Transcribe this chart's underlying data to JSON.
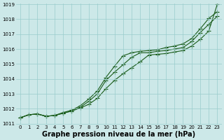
{
  "x": [
    0,
    1,
    2,
    3,
    4,
    5,
    6,
    7,
    8,
    9,
    10,
    11,
    12,
    13,
    14,
    15,
    16,
    17,
    18,
    19,
    20,
    21,
    22,
    23
  ],
  "line1": [
    1011.4,
    1011.6,
    1011.65,
    1011.5,
    1011.55,
    1011.7,
    1011.85,
    1012.05,
    1012.3,
    1012.7,
    1013.35,
    1013.9,
    1014.35,
    1014.75,
    1015.15,
    1015.6,
    1015.65,
    1015.7,
    1015.8,
    1015.9,
    1016.2,
    1016.65,
    1017.2,
    1019.0
  ],
  "line2": [
    1011.4,
    1011.6,
    1011.65,
    1011.5,
    1011.55,
    1011.7,
    1011.85,
    1012.1,
    1012.5,
    1013.0,
    1013.9,
    1014.45,
    1014.95,
    1015.45,
    1015.75,
    1015.75,
    1015.85,
    1015.9,
    1016.0,
    1016.1,
    1016.5,
    1017.1,
    1017.65,
    1018.2
  ],
  "line3": [
    1011.4,
    1011.6,
    1011.65,
    1011.5,
    1011.55,
    1011.75,
    1011.9,
    1012.2,
    1012.65,
    1013.2,
    1014.1,
    1014.85,
    1015.55,
    1015.75,
    1015.85,
    1015.9,
    1015.95,
    1016.1,
    1016.2,
    1016.35,
    1016.7,
    1017.35,
    1018.05,
    1018.5
  ],
  "ylim": [
    1011.0,
    1019.0
  ],
  "xlim": [
    -0.5,
    23.5
  ],
  "yticks": [
    1011,
    1012,
    1013,
    1014,
    1015,
    1016,
    1017,
    1018,
    1019
  ],
  "xticks": [
    0,
    1,
    2,
    3,
    4,
    5,
    6,
    7,
    8,
    9,
    10,
    11,
    12,
    13,
    14,
    15,
    16,
    17,
    18,
    19,
    20,
    21,
    22,
    23
  ],
  "xlabel": "Graphe pression niveau de la mer (hPa)",
  "line_color": "#1a5c1a",
  "bg_color": "#cce8e8",
  "grid_color": "#99cccc",
  "marker": "+",
  "marker_size": 4,
  "linewidth": 0.8,
  "tick_fontsize": 5.0,
  "xlabel_fontsize": 7.0
}
